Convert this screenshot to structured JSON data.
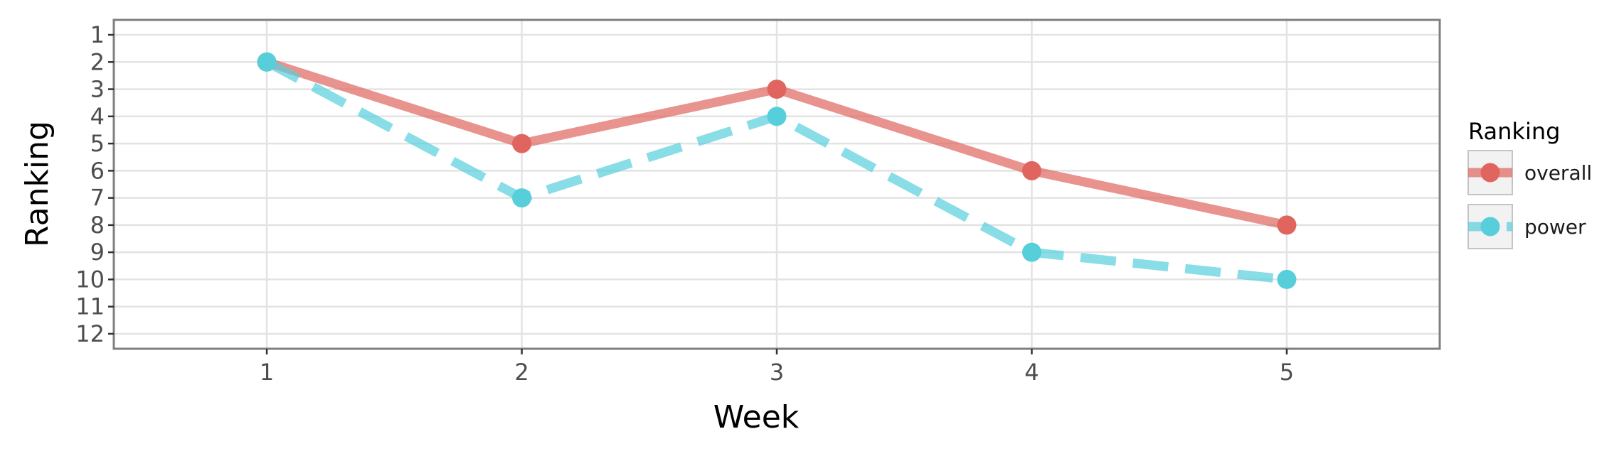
{
  "chart_data": {
    "type": "line",
    "title": "",
    "xlabel": "Week",
    "ylabel": "Ranking",
    "x": [
      1,
      2,
      3,
      4,
      5
    ],
    "x_ticks": [
      "1",
      "2",
      "3",
      "4",
      "5"
    ],
    "xlim": [
      0.4,
      5.6
    ],
    "ylim": [
      12.55,
      0.45
    ],
    "y_reversed": true,
    "y_ticks": [
      "1",
      "2",
      "3",
      "4",
      "5",
      "6",
      "7",
      "8",
      "9",
      "10",
      "11",
      "12"
    ],
    "grid": true,
    "legend": {
      "title": "Ranking",
      "position": "right"
    },
    "series": [
      {
        "name": "overall",
        "values": [
          2,
          5,
          3,
          6,
          8
        ],
        "color": "#e0655f",
        "line_style": "solid"
      },
      {
        "name": "power",
        "values": [
          2,
          7,
          4,
          9,
          10
        ],
        "color": "#56cfdb",
        "line_style": "dashed"
      }
    ]
  }
}
